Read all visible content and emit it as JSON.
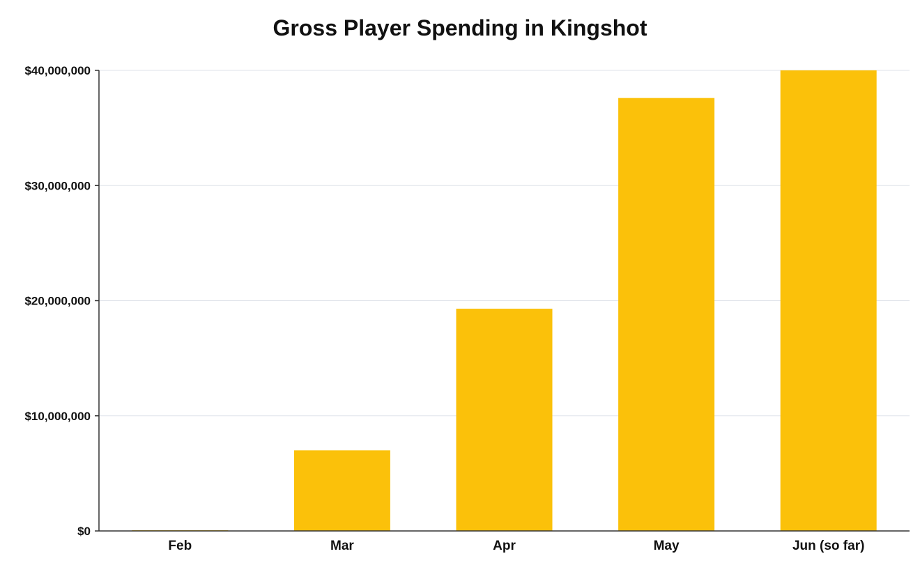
{
  "chart_data": {
    "type": "bar",
    "title": "Gross Player Spending in Kingshot",
    "xlabel": "",
    "ylabel": "",
    "categories": [
      "Feb",
      "Mar",
      "Apr",
      "May",
      "Jun (so far)"
    ],
    "values": [
      60000,
      7000000,
      19300000,
      37600000,
      40000000
    ],
    "ylim": [
      0,
      40000000
    ],
    "yticks": [
      0,
      10000000,
      20000000,
      30000000,
      40000000
    ],
    "ytick_labels": [
      "$0",
      "$10,000,000",
      "$20,000,000",
      "$30,000,000",
      "$40,000,000"
    ],
    "grid": true,
    "legend": "none",
    "bar_color": "#FBC10A",
    "grid_color": "#dfe3ea"
  }
}
